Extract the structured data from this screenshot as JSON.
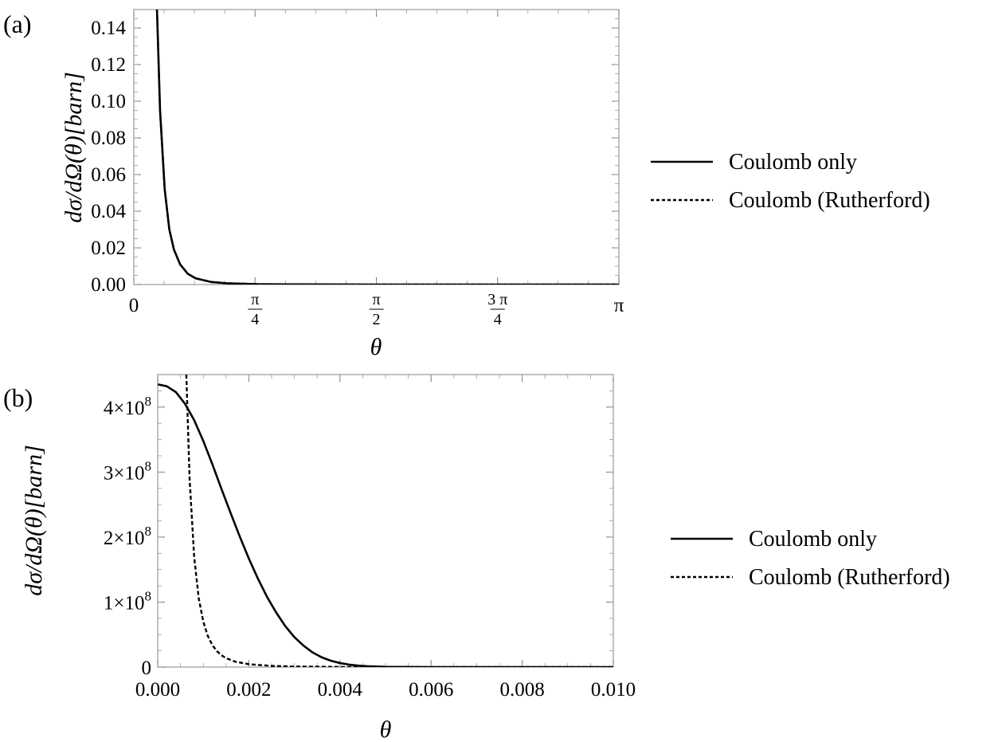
{
  "chart_data": [
    {
      "type": "line",
      "panel_label": "(a)",
      "xlabel": "θ",
      "ylabel": "dσ/dΩ(θ)[barn]",
      "xlim": [
        0,
        3.14159
      ],
      "ylim": [
        0,
        0.15
      ],
      "x_ticks": [
        {
          "value": 0,
          "label": "0"
        },
        {
          "value": 0.7854,
          "label": "π/4",
          "num": "π",
          "den": "4"
        },
        {
          "value": 1.5708,
          "label": "π/2",
          "num": "π",
          "den": "2"
        },
        {
          "value": 2.3562,
          "label": "3π/4",
          "num": "3 π",
          "den": "4"
        },
        {
          "value": 3.14159,
          "label": "π"
        }
      ],
      "y_ticks": [
        "0.00",
        "0.02",
        "0.04",
        "0.06",
        "0.08",
        "0.10",
        "0.12",
        "0.14"
      ],
      "y_tick_values": [
        0,
        0.02,
        0.04,
        0.06,
        0.08,
        0.1,
        0.12,
        0.14
      ],
      "grid": false,
      "legend_position": "right",
      "series": [
        {
          "name": "Coulomb only",
          "style": "solid",
          "x": [
            0.15,
            0.17,
            0.2,
            0.23,
            0.26,
            0.3,
            0.35,
            0.4,
            0.5,
            0.6,
            0.8,
            1.0,
            1.5,
            2.0,
            2.5,
            3.14
          ],
          "y": [
            0.15,
            0.095,
            0.052,
            0.03,
            0.019,
            0.011,
            0.0058,
            0.0034,
            0.0014,
            0.0007,
            0.0002,
            0.0001,
            0.0,
            0.0,
            0.0,
            0.0
          ]
        },
        {
          "name": "Coulomb (Rutherford)",
          "style": "dashed",
          "x": [
            0.15,
            0.17,
            0.2,
            0.23,
            0.26,
            0.3,
            0.35,
            0.4,
            0.5,
            0.6,
            0.8,
            1.0,
            1.5,
            2.0,
            2.5,
            3.14
          ],
          "y": [
            0.15,
            0.095,
            0.052,
            0.03,
            0.019,
            0.011,
            0.0058,
            0.0034,
            0.0014,
            0.0007,
            0.0002,
            0.0001,
            0.0,
            0.0,
            0.0,
            0.0
          ]
        }
      ]
    },
    {
      "type": "line",
      "panel_label": "(b)",
      "xlabel": "θ",
      "ylabel": "dσ/dΩ(θ)[barn]",
      "xlim": [
        0,
        0.01
      ],
      "ylim": [
        0,
        450000000
      ],
      "x_ticks": [
        "0.000",
        "0.002",
        "0.004",
        "0.006",
        "0.008",
        "0.010"
      ],
      "x_tick_values": [
        0,
        0.002,
        0.004,
        0.006,
        0.008,
        0.01
      ],
      "y_ticks": [
        {
          "value": 0,
          "label": "0"
        },
        {
          "value": 100000000,
          "label": "1×10^8",
          "mant": "1",
          "exp": "8"
        },
        {
          "value": 200000000,
          "label": "2×10^8",
          "mant": "2",
          "exp": "8"
        },
        {
          "value": 300000000,
          "label": "3×10^8",
          "mant": "3",
          "exp": "8"
        },
        {
          "value": 400000000,
          "label": "4×10^8",
          "mant": "4",
          "exp": "8"
        }
      ],
      "grid": false,
      "legend_position": "right",
      "series": [
        {
          "name": "Coulomb only",
          "style": "solid",
          "x": [
            0,
            0.0002,
            0.0004,
            0.0006,
            0.0008,
            0.001,
            0.0012,
            0.0014,
            0.0016,
            0.0018,
            0.002,
            0.0022,
            0.0024,
            0.0026,
            0.0028,
            0.003,
            0.0032,
            0.0034,
            0.0036,
            0.0038,
            0.004,
            0.0042,
            0.0044,
            0.0046,
            0.005,
            0.006,
            0.007,
            0.008,
            0.009,
            0.01
          ],
          "y": [
            435000000,
            432000000,
            423000000,
            405000000,
            380000000,
            348000000,
            312000000,
            274000000,
            237000000,
            201000000,
            167000000,
            136000000,
            108000000,
            84000000,
            63000000,
            46000000,
            33000000,
            22500000,
            15000000,
            9800000,
            6200000,
            3800000,
            2200000,
            1300000,
            400000,
            0,
            0,
            0,
            0,
            0
          ]
        },
        {
          "name": "Coulomb (Rutherford)",
          "style": "dashed",
          "x": [
            0.000628,
            0.0007,
            0.0008,
            0.0009,
            0.001,
            0.0011,
            0.0012,
            0.0013,
            0.0014,
            0.0015,
            0.0017,
            0.002,
            0.0025,
            0.003,
            0.004,
            0.006,
            0.008,
            0.01
          ],
          "y": [
            450000000,
            290000000,
            170000000,
            106000000,
            70000000,
            47800000,
            33800000,
            24500000,
            18200000,
            13800000,
            8400000,
            4400000,
            1800000,
            870000,
            280000,
            55000,
            17000,
            7000
          ]
        }
      ]
    }
  ]
}
